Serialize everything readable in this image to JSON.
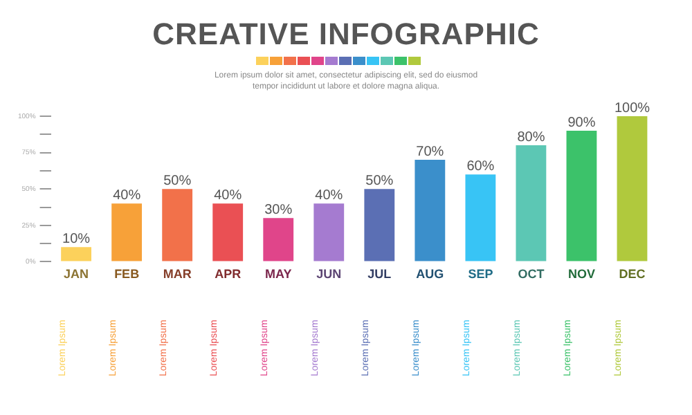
{
  "chart_data": {
    "type": "bar",
    "title": "CREATIVE INFOGRAPHIC",
    "subtitle": "Lorem ipsum dolor sit amet, consectetur adipiscing elit, sed do eiusmod tempor incididunt ut labore et dolore magna aliqua.",
    "categories": [
      "JAN",
      "FEB",
      "MAR",
      "APR",
      "MAY",
      "JUN",
      "JUL",
      "AUG",
      "SEP",
      "OCT",
      "NOV",
      "DEC"
    ],
    "values": [
      10,
      40,
      50,
      40,
      30,
      40,
      50,
      70,
      60,
      80,
      90,
      100
    ],
    "colors": [
      "#fcd15b",
      "#f7a139",
      "#f2714a",
      "#ea5054",
      "#e0458a",
      "#a57bd0",
      "#5b6fb4",
      "#3b8fcb",
      "#38c4f5",
      "#5cc7b4",
      "#3cc26a",
      "#b0c93d"
    ],
    "value_labels": [
      "10%",
      "40%",
      "50%",
      "40%",
      "30%",
      "40%",
      "50%",
      "70%",
      "60%",
      "80%",
      "90%",
      "100%"
    ],
    "ylim": [
      0,
      100
    ],
    "yticks": [
      {
        "value": 0,
        "label": "0%"
      },
      {
        "value": 12.5,
        "label": null
      },
      {
        "value": 25,
        "label": "25%"
      },
      {
        "value": 37.5,
        "label": null
      },
      {
        "value": 50,
        "label": "50%"
      },
      {
        "value": 62.5,
        "label": null
      },
      {
        "value": 75,
        "label": "75%"
      },
      {
        "value": 87.5,
        "label": null
      },
      {
        "value": 100,
        "label": "100%"
      }
    ],
    "annotations": [
      "Lorem Ipsum",
      "Lorem Ipsum",
      "Lorem Ipsum",
      "Lorem Ipsum",
      "Lorem Ipsum",
      "Lorem Ipsum",
      "Lorem Ipsum",
      "Lorem Ipsum",
      "Lorem Ipsum",
      "Lorem Ipsum",
      "Lorem Ipsum",
      "Lorem Ipsum"
    ],
    "grid": false,
    "legend": false
  }
}
